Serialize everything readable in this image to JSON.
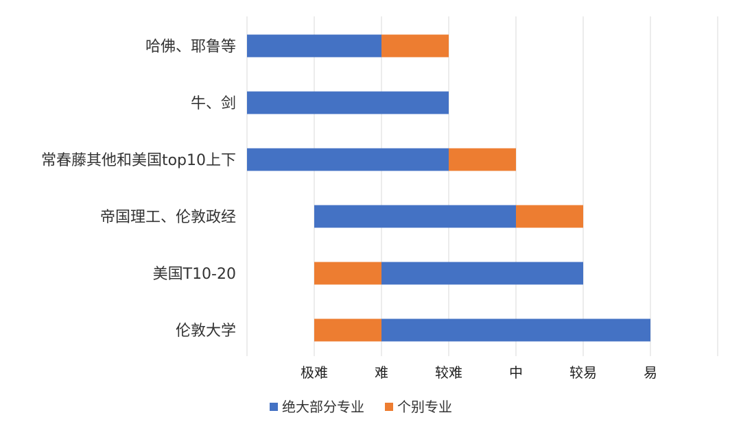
{
  "chart_data": {
    "type": "bar",
    "orientation": "horizontal",
    "stacked": true,
    "categories": [
      "哈佛、耶鲁等",
      "牛、剑",
      "常春藤其他和美国top10上下",
      "帝国理工、伦敦政经",
      "美国T10-20",
      "伦敦大学"
    ],
    "x_ticks": [
      "极难",
      "难",
      "较难",
      "中",
      "较易",
      "易"
    ],
    "segments": [
      [
        {
          "series": "绝大部分专业",
          "from": -1,
          "to": 1
        },
        {
          "series": "个别专业",
          "from": 1,
          "to": 2
        }
      ],
      [
        {
          "series": "绝大部分专业",
          "from": -1,
          "to": 2
        }
      ],
      [
        {
          "series": "绝大部分专业",
          "from": -1,
          "to": 2
        },
        {
          "series": "个别专业",
          "from": 2,
          "to": 3
        }
      ],
      [
        {
          "series": "绝大部分专业",
          "from": 0,
          "to": 3
        },
        {
          "series": "个别专业",
          "from": 3,
          "to": 4
        }
      ],
      [
        {
          "series": "个别专业",
          "from": 0,
          "to": 1
        },
        {
          "series": "绝大部分专业",
          "from": 1,
          "to": 4
        }
      ],
      [
        {
          "series": "个别专业",
          "from": 0,
          "to": 1
        },
        {
          "series": "绝大部分专业",
          "from": 1,
          "to": 5
        }
      ]
    ],
    "series": [
      {
        "name": "绝大部分专业",
        "color": "#4472C4"
      },
      {
        "name": "个别专业",
        "color": "#ED7D31"
      }
    ],
    "xlim": [
      -1,
      6
    ],
    "grid": true,
    "legend_position": "bottom"
  }
}
